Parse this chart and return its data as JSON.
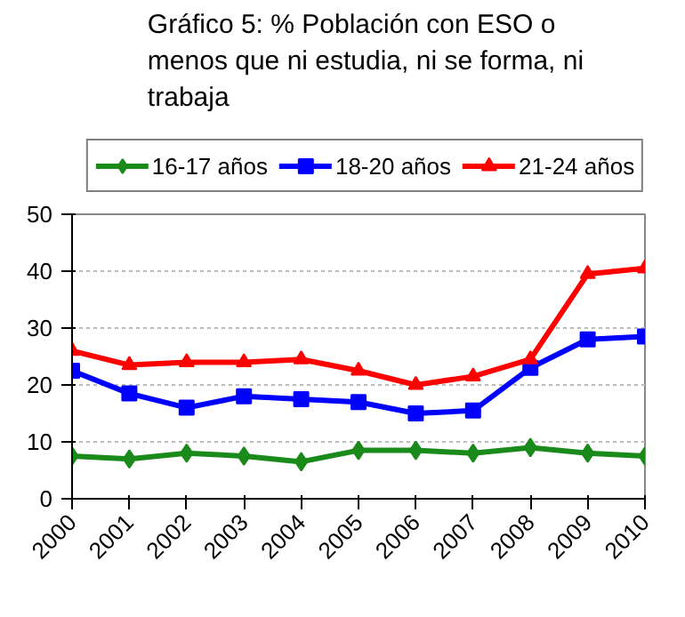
{
  "chart_data": {
    "type": "line",
    "title": "Gráfico 5: % Población con ESO o menos que ni estudia, ni se forma, ni trabaja",
    "categories": [
      "2000",
      "2001",
      "2002",
      "2003",
      "2004",
      "2005",
      "2006",
      "2007",
      "2008",
      "2009",
      "2010"
    ],
    "series": [
      {
        "name": "16-17 años",
        "color": "#1a8a1a",
        "marker": "diamond",
        "values": [
          7.5,
          7,
          8,
          7.5,
          6.5,
          8.5,
          8.5,
          8,
          9,
          8,
          7.5
        ]
      },
      {
        "name": "18-20 años",
        "color": "#0000ff",
        "marker": "square",
        "values": [
          22.5,
          18.5,
          16,
          18,
          17.5,
          17,
          15,
          15.5,
          23,
          28,
          28.5
        ]
      },
      {
        "name": "21-24 años",
        "color": "#ff0000",
        "marker": "triangle",
        "values": [
          26,
          23.5,
          24,
          24,
          24.5,
          22.5,
          20,
          21.5,
          24.5,
          39.5,
          40.5
        ]
      }
    ],
    "ylim": [
      0,
      50
    ],
    "yticks": [
      0,
      10,
      20,
      30,
      40,
      50
    ],
    "grid": "y",
    "legend": "top",
    "line_style": "solid"
  }
}
